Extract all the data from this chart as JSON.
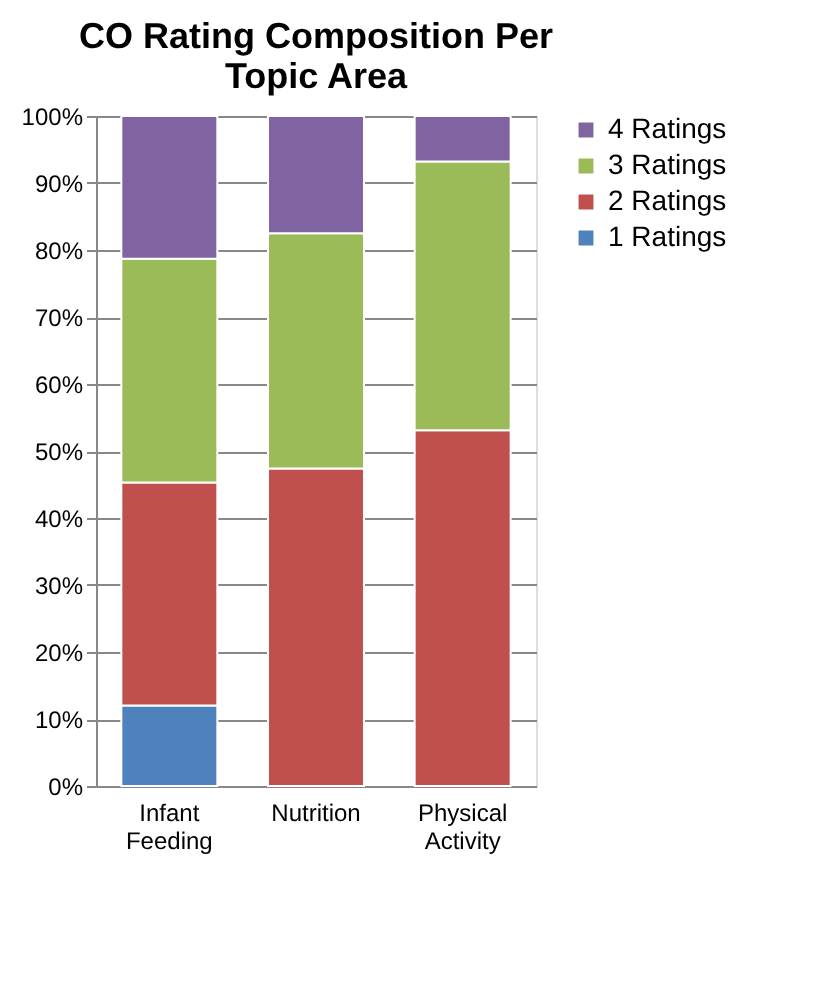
{
  "chart_data": {
    "type": "bar",
    "title": "CO Rating Composition Per Topic Area",
    "stacked": true,
    "legend": "right",
    "grid": "y",
    "categories": [
      "Infant Feeding",
      "Nutrition",
      "Physical Activity"
    ],
    "series": [
      {
        "name": "1 Ratings",
        "color": "#4f81bd",
        "values": [
          12,
          0,
          0
        ]
      },
      {
        "name": "2 Ratings",
        "color": "#c0504d",
        "values": [
          33.3,
          47.4,
          53.1
        ]
      },
      {
        "name": "3 Ratings",
        "color": "#9bbb59",
        "values": [
          33.4,
          35.1,
          40.1
        ]
      },
      {
        "name": "4 Ratings",
        "color": "#8064a2",
        "values": [
          21.3,
          17.5,
          6.8
        ]
      }
    ],
    "ylim": [
      0,
      100
    ],
    "yticks": [
      {
        "value": 0,
        "label": "0%"
      },
      {
        "value": 10,
        "label": "10%"
      },
      {
        "value": 20,
        "label": "20%"
      },
      {
        "value": 30,
        "label": "30%"
      },
      {
        "value": 40,
        "label": "40%"
      },
      {
        "value": 50,
        "label": "50%"
      },
      {
        "value": 60,
        "label": "60%"
      },
      {
        "value": 70,
        "label": "70%"
      },
      {
        "value": 80,
        "label": "80%"
      },
      {
        "value": 90,
        "label": "90%"
      },
      {
        "value": 100,
        "label": "100%"
      }
    ]
  }
}
